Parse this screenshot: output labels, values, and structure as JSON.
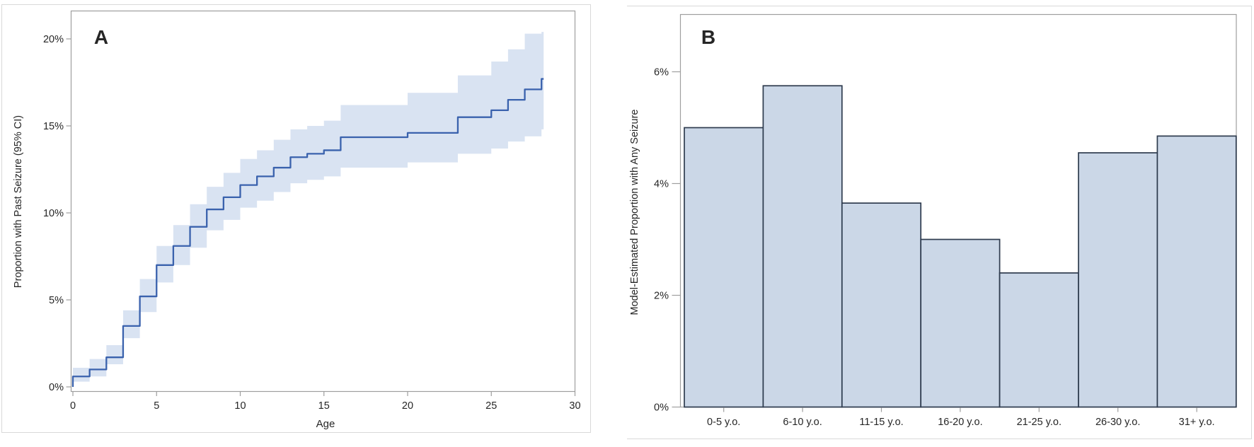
{
  "figure": {
    "description": "Two-panel statistical figure",
    "panel_a_label": "A",
    "panel_b_label": "B"
  },
  "chart_data": [
    {
      "type": "line",
      "subtype": "step-function-with-ci-band",
      "panel_label": "A",
      "title": "",
      "xlabel": "Age",
      "ylabel": "Proportion with Past Seizure (95% CI)",
      "xlim": [
        0,
        30
      ],
      "ylim": [
        0,
        21.8
      ],
      "x_tick_values": [
        0,
        5,
        10,
        15,
        20,
        25,
        30
      ],
      "x_tick_labels": [
        "0",
        "5",
        "10",
        "15",
        "20",
        "25",
        "30"
      ],
      "y_tick_values": [
        0,
        5,
        10,
        15,
        20
      ],
      "y_tick_labels": [
        "0%",
        "5%",
        "10%",
        "15%",
        "20%"
      ],
      "grid": false,
      "legend": "none",
      "series": [
        {
          "name": "Proportion with past seizure (step estimate, %)",
          "x": [
            0,
            1,
            2,
            3,
            4,
            5,
            6,
            7,
            8,
            9,
            10,
            11,
            12,
            13,
            14,
            15,
            16,
            17,
            18,
            19,
            20,
            21,
            22,
            23,
            24,
            25,
            26,
            27,
            28
          ],
          "y": [
            0.6,
            1.0,
            1.7,
            3.5,
            5.2,
            7.0,
            8.1,
            9.2,
            10.2,
            10.9,
            11.6,
            12.1,
            12.6,
            13.2,
            13.4,
            13.6,
            14.35,
            14.35,
            14.35,
            14.35,
            14.6,
            14.6,
            14.6,
            15.5,
            15.5,
            15.9,
            16.5,
            17.1,
            17.7
          ]
        }
      ],
      "ci_lower": [
        0.3,
        0.6,
        1.3,
        2.8,
        4.3,
        6.0,
        7.0,
        8.0,
        9.0,
        9.6,
        10.3,
        10.7,
        11.2,
        11.7,
        11.9,
        12.1,
        12.6,
        12.6,
        12.6,
        12.6,
        12.9,
        12.9,
        12.9,
        13.4,
        13.4,
        13.7,
        14.1,
        14.4,
        14.8
      ],
      "ci_upper": [
        1.1,
        1.6,
        2.4,
        4.4,
        6.2,
        8.1,
        9.3,
        10.5,
        11.5,
        12.3,
        13.1,
        13.6,
        14.2,
        14.8,
        15.0,
        15.3,
        16.2,
        16.2,
        16.2,
        16.2,
        16.9,
        16.9,
        16.9,
        17.9,
        17.9,
        18.7,
        19.4,
        20.3,
        20.4
      ],
      "colors": {
        "line": "#3a62ad",
        "band": "#d9e3f2",
        "frame": "#9e9e9e",
        "text": "#262626"
      }
    },
    {
      "type": "bar",
      "panel_label": "B",
      "title": "",
      "xlabel": "",
      "ylabel": "Model-Estimated Proportion with Any Seizure",
      "categories": [
        "0-5 y.o.",
        "6-10 y.o.",
        "11-15 y.o.",
        "16-20 y.o.",
        "21-25 y.o.",
        "26-30 y.o.",
        "31+ y.o."
      ],
      "values": [
        5.0,
        5.75,
        3.65,
        3.0,
        2.4,
        4.55,
        4.85
      ],
      "ylim": [
        0,
        7
      ],
      "y_tick_values": [
        0,
        2,
        4,
        6
      ],
      "y_tick_labels": [
        "0%",
        "2%",
        "4%",
        "6%"
      ],
      "grid": false,
      "legend": "none",
      "colors": {
        "bar_fill": "#cbd7e7",
        "bar_border": "#2e3b4e",
        "frame": "#9e9e9e",
        "text": "#262626"
      }
    }
  ]
}
